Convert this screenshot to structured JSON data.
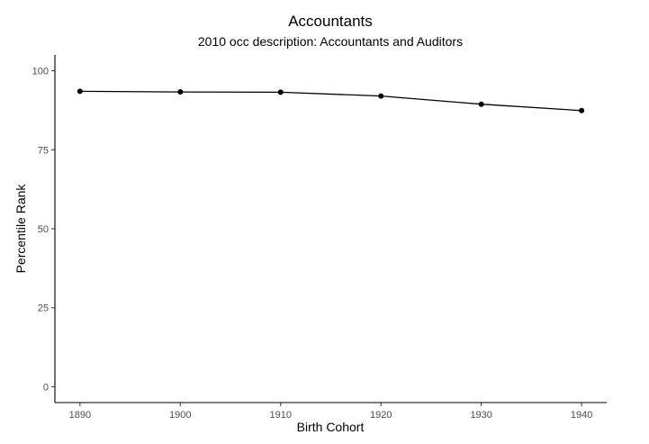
{
  "chart_data": {
    "type": "line",
    "title": "Accountants",
    "subtitle": "2010 occ description: Accountants and Auditors",
    "xlabel": "Birth Cohort",
    "ylabel": "Percentile Rank",
    "x": [
      1890,
      1900,
      1910,
      1920,
      1930,
      1940
    ],
    "series": [
      {
        "values": [
          93.5,
          93.3,
          93.2,
          92.0,
          89.4,
          87.4
        ]
      }
    ],
    "xticks": [
      "1890",
      "1900",
      "1910",
      "1920",
      "1930",
      "1940"
    ],
    "yticks": [
      "0",
      "25",
      "50",
      "75",
      "100"
    ],
    "xlim": [
      1887.5,
      1942.5
    ],
    "ylim": [
      -5,
      105
    ],
    "grid": false,
    "line_color": "#000000"
  }
}
